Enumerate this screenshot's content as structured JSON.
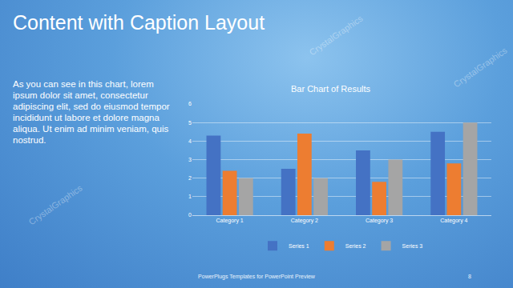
{
  "slide": {
    "title": "Content with Caption Layout",
    "caption": "As you can see in this chart, lorem ipsum dolor sit amet, consectetur adipiscing elit, sed do eiusmod tempor incididunt ut labore et dolore magna aliqua. Ut enim ad minim veniam, quis nostrud.",
    "footer": "PowerPlugs Templates for PowerPoint Preview",
    "page_number": "8",
    "watermark": "CrystalGraphics"
  },
  "chart_data": {
    "type": "bar",
    "title": "Bar Chart of Results",
    "categories": [
      "Category 1",
      "Category 2",
      "Category 3",
      "Category 4"
    ],
    "series": [
      {
        "name": "Series 1",
        "color": "#4472c4",
        "values": [
          4.3,
          2.5,
          3.5,
          4.5
        ]
      },
      {
        "name": "Series 2",
        "color": "#ed7d31",
        "values": [
          2.4,
          4.4,
          1.8,
          2.8
        ]
      },
      {
        "name": "Series 3",
        "color": "#a5a5a5",
        "values": [
          2.0,
          2.0,
          3.0,
          5.0
        ]
      }
    ],
    "ylim": [
      0,
      6
    ],
    "yticks": [
      0,
      1,
      2,
      3,
      4,
      5,
      6
    ],
    "grid": true,
    "legend": "bottom"
  }
}
